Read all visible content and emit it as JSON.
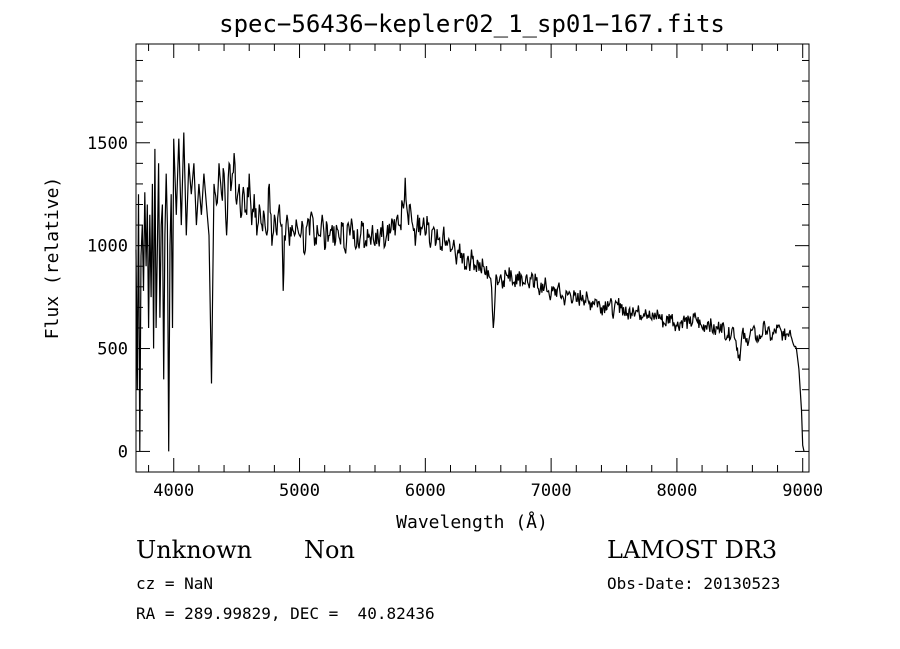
{
  "chart_data": {
    "type": "line",
    "title": "spec−56436−kepler02_1_sp01−167.fits",
    "xlabel": "Wavelength (Å)",
    "ylabel": "Flux (relative)",
    "xlim": [
      3700,
      9050
    ],
    "ylim": [
      -100,
      1980
    ],
    "xticks": [
      4000,
      5000,
      6000,
      7000,
      8000,
      9000
    ],
    "yticks": [
      0,
      500,
      1000,
      1500
    ],
    "grid": false,
    "series": [
      {
        "x": [
          3700,
          3710,
          3720,
          3730,
          3740,
          3750,
          3760,
          3770,
          3780,
          3790,
          3800,
          3810,
          3820,
          3830,
          3840,
          3850,
          3860,
          3870,
          3880,
          3890,
          3900,
          3910,
          3920,
          3930,
          3940,
          3950,
          3960,
          3970,
          3980,
          3990,
          4000,
          4020,
          4040,
          4060,
          4080,
          4100,
          4120,
          4140,
          4160,
          4180,
          4200,
          4220,
          4240,
          4260,
          4280,
          4300,
          4320,
          4340,
          4360,
          4380,
          4400,
          4420,
          4440,
          4460,
          4480,
          4500,
          4520,
          4540,
          4560,
          4580,
          4600,
          4620,
          4640,
          4660,
          4680,
          4700,
          4720,
          4740,
          4760,
          4780,
          4800,
          4820,
          4840,
          4860,
          4870,
          4880,
          4900,
          4920,
          4940,
          4960,
          4980,
          5000,
          5020,
          5040,
          5060,
          5080,
          5100,
          5120,
          5140,
          5160,
          5180,
          5200,
          5220,
          5240,
          5260,
          5280,
          5300,
          5320,
          5340,
          5360,
          5380,
          5400,
          5420,
          5440,
          5460,
          5480,
          5500,
          5520,
          5540,
          5560,
          5580,
          5600,
          5620,
          5640,
          5660,
          5680,
          5700,
          5720,
          5740,
          5760,
          5780,
          5800,
          5820,
          5840,
          5860,
          5880,
          5900,
          5920,
          5940,
          5960,
          5980,
          6000,
          6020,
          6040,
          6060,
          6080,
          6100,
          6120,
          6140,
          6160,
          6180,
          6200,
          6220,
          6240,
          6260,
          6280,
          6300,
          6320,
          6340,
          6360,
          6380,
          6400,
          6420,
          6440,
          6460,
          6480,
          6500,
          6520,
          6540,
          6560,
          6563,
          6580,
          6600,
          6620,
          6640,
          6660,
          6680,
          6700,
          6720,
          6740,
          6760,
          6780,
          6800,
          6820,
          6840,
          6860,
          6880,
          6900,
          6920,
          6940,
          6960,
          6980,
          7000,
          7050,
          7100,
          7150,
          7200,
          7250,
          7300,
          7350,
          7400,
          7450,
          7500,
          7550,
          7600,
          7650,
          7700,
          7750,
          7800,
          7850,
          7900,
          7950,
          8000,
          8050,
          8100,
          8150,
          8200,
          8250,
          8300,
          8350,
          8400,
          8450,
          8500,
          8520,
          8550,
          8600,
          8650,
          8700,
          8750,
          8800,
          8850,
          8900,
          8950,
          8970,
          8990,
          9000,
          9010
        ],
        "y": [
          980,
          300,
          1250,
          0,
          950,
          1100,
          780,
          1260,
          900,
          1200,
          600,
          1150,
          750,
          1300,
          500,
          1470,
          600,
          1000,
          1400,
          650,
          1100,
          1200,
          350,
          1050,
          1350,
          1100,
          0,
          1000,
          1250,
          600,
          1520,
          1150,
          1520,
          1100,
          1550,
          1050,
          1400,
          1250,
          1400,
          1100,
          1300,
          1150,
          1350,
          1200,
          1050,
          330,
          1300,
          1200,
          1400,
          1250,
          1350,
          1050,
          1400,
          1300,
          1450,
          1200,
          1300,
          1150,
          1250,
          1150,
          1350,
          1100,
          1250,
          1050,
          1200,
          1100,
          1150,
          1050,
          1300,
          1000,
          1150,
          1050,
          1200,
          1100,
          780,
          1050,
          1150,
          1000,
          1100,
          1050,
          1100,
          1050,
          1120,
          960,
          1100,
          1050,
          1150,
          1000,
          1100,
          1050,
          1150,
          980,
          1100,
          1050,
          1100,
          1000,
          1080,
          1030,
          1100,
          980,
          1100,
          1050,
          1100,
          1000,
          1080,
          1030,
          1100,
          1000,
          1080,
          1040,
          1100,
          1000,
          1080,
          1050,
          1120,
          1000,
          1100,
          1060,
          1120,
          1050,
          1150,
          1100,
          1200,
          1330,
          1150,
          1200,
          1100,
          1000,
          1150,
          1050,
          1100,
          1050,
          1100,
          990,
          1080,
          1000,
          1030,
          980,
          1050,
          1000,
          1020,
          970,
          1000,
          950,
          980,
          940,
          960,
          900,
          950,
          920,
          950,
          900,
          920,
          880,
          900,
          860,
          880,
          840,
          600,
          840,
          860,
          820,
          860,
          830,
          870,
          840,
          880,
          820,
          860,
          830,
          860,
          820,
          850,
          810,
          840,
          800,
          830,
          790,
          820,
          780,
          810,
          780,
          760,
          790,
          740,
          770,
          730,
          760,
          720,
          740,
          700,
          730,
          680,
          720,
          660,
          700,
          670,
          690,
          640,
          670,
          620,
          660,
          610,
          640,
          620,
          650,
          600,
          630,
          580,
          620,
          560,
          600,
          440,
          580,
          530,
          590,
          540,
          610,
          550,
          600,
          560,
          590,
          500,
          400,
          200,
          30,
          0
        ]
      }
    ]
  },
  "annotations": {
    "object_class": "Unknown",
    "object_subclass": "Non",
    "survey": "LAMOST DR3",
    "cz": "cz = NaN",
    "obs_date": "Obs-Date: 20130523",
    "coords": "RA = 289.99829, DEC =  40.82436"
  }
}
